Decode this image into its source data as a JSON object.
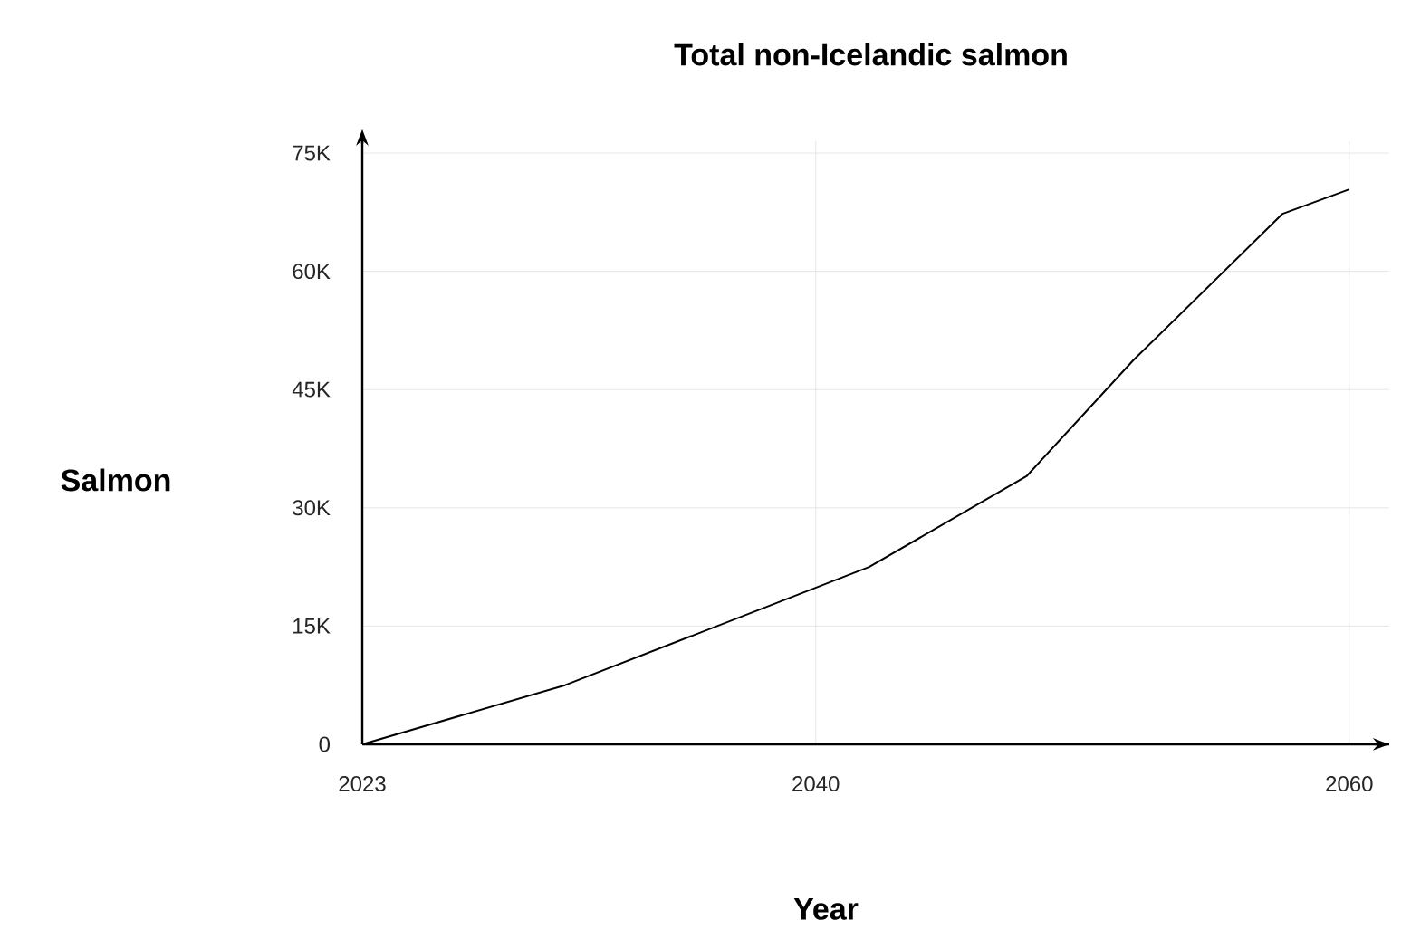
{
  "chart_data": {
    "type": "line",
    "title": "Total non-Icelandic salmon",
    "xlabel": "Year",
    "ylabel": "Salmon",
    "x": [
      2023,
      2030.6,
      2042,
      2047.9,
      2051.9,
      2057.5,
      2060
    ],
    "series": [
      {
        "color": "#000000",
        "values": [
          0,
          7500,
          22500,
          34000,
          48700,
          67300,
          70400
        ]
      }
    ],
    "xlim": [
      2023,
      2061.5
    ],
    "ylim": [
      0,
      75000
    ],
    "xticks": [
      2023,
      2040,
      2060
    ],
    "yticks": [
      0,
      {
        "value": 15000,
        "label": "15K"
      },
      {
        "value": 30000,
        "label": "30K"
      },
      {
        "value": 45000,
        "label": "45K"
      },
      {
        "value": 60000,
        "label": "60K"
      },
      {
        "value": 75000,
        "label": "75K"
      }
    ],
    "grid": true,
    "marker": "none",
    "line_style": "solid"
  }
}
